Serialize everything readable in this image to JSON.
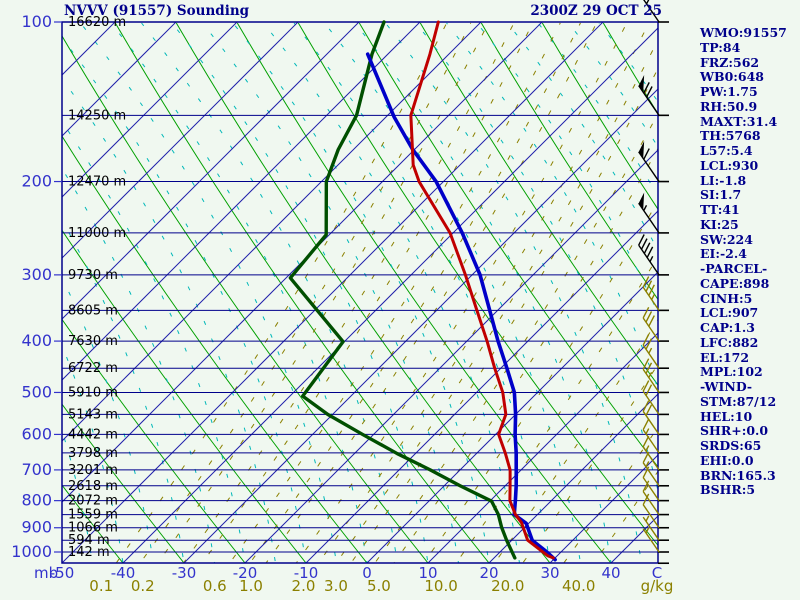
{
  "header": {
    "title": "NVVV (91557) Sounding",
    "datetime": "2300Z 29 OCT 25"
  },
  "stats_panel": {
    "lines": [
      "WMO:91557",
      "TP:84",
      "FRZ:562",
      "WB0:648",
      "PW:1.75",
      "RH:50.9",
      "MAXT:31.4",
      "TH:5768",
      "L57:5.4",
      "LCL:930",
      "LI:-1.8",
      "SI:1.7",
      "TT:41",
      "KI:25",
      "SW:224",
      "EI:-2.4",
      "-PARCEL-",
      "CAPE:898",
      "CINH:5",
      "LCL:907",
      "CAP:1.3",
      "LFC:882",
      "EL:172",
      "MPL:102",
      "-WIND-",
      "STM:87/12",
      "HEL:10",
      "SHR+:0.0",
      "SRDS:65",
      "EHI:0.0",
      "BRN:165.3",
      "BSHR:5"
    ]
  },
  "axes": {
    "pressure_unit": "mb",
    "temp_unit": "C",
    "ratio_unit": "g/kg",
    "pressure_ticks": [
      100,
      200,
      300,
      400,
      500,
      600,
      700,
      800,
      900,
      1000
    ],
    "temp_ticks_c": [
      -50,
      -40,
      -30,
      -20,
      -10,
      0,
      10,
      20,
      30,
      40
    ],
    "height_labels": [
      {
        "p": 100,
        "label": "16620 m"
      },
      {
        "p": 150,
        "label": "14250 m"
      },
      {
        "p": 200,
        "label": "12470 m"
      },
      {
        "p": 250,
        "label": "11000 m"
      },
      {
        "p": 300,
        "label": "9730 m"
      },
      {
        "p": 350,
        "label": "8605 m"
      },
      {
        "p": 400,
        "label": "7630 m"
      },
      {
        "p": 450,
        "label": "6722 m"
      },
      {
        "p": 500,
        "label": "5910 m"
      },
      {
        "p": 550,
        "label": "5143 m"
      },
      {
        "p": 600,
        "label": "4442 m"
      },
      {
        "p": 650,
        "label": "3798 m"
      },
      {
        "p": 700,
        "label": "3201 m"
      },
      {
        "p": 750,
        "label": "2618 m"
      },
      {
        "p": 800,
        "label": "2072 m"
      },
      {
        "p": 850,
        "label": "1559 m"
      },
      {
        "p": 900,
        "label": "1066 m"
      },
      {
        "p": 950,
        "label": "594 m"
      },
      {
        "p": 1000,
        "label": "142 m"
      }
    ],
    "mixing_ratio_labeled": [
      0.1,
      0.2,
      0.6,
      1.0,
      2.0,
      3.0,
      5.0,
      10.0,
      20.0,
      40.0
    ],
    "mixing_ratio_unlabeled": [
      0.15,
      0.3,
      0.4,
      0.8,
      1.5,
      2.5,
      4.0,
      7.0,
      15.0,
      30.0
    ]
  },
  "chart_data": {
    "type": "line",
    "subtype": "skew-t-log-p sounding",
    "title": "NVVV (91557) Sounding",
    "xlabel": "Temperature (C)",
    "ylabel": "Pressure (mb)",
    "pressure_range_mb": [
      100,
      1050
    ],
    "temp_axis_range_c": [
      -50,
      40
    ],
    "grid": "skew-t background: isobars, skewed isotherms, dry adiabats, moist adiabats, mixing-ratio lines",
    "series": [
      {
        "name": "temperature",
        "points": [
          {
            "p": 100,
            "t": -77.0
          },
          {
            "p": 115,
            "t": -73.1
          },
          {
            "p": 150,
            "t": -66.2
          },
          {
            "p": 186,
            "t": -57.7
          },
          {
            "p": 200,
            "t": -54.0
          },
          {
            "p": 250,
            "t": -40.5
          },
          {
            "p": 300,
            "t": -31.1
          },
          {
            "p": 350,
            "t": -23.4
          },
          {
            "p": 400,
            "t": -16.7
          },
          {
            "p": 450,
            "t": -11.0
          },
          {
            "p": 500,
            "t": -5.7
          },
          {
            "p": 550,
            "t": -1.6
          },
          {
            "p": 600,
            "t": 0.5
          },
          {
            "p": 650,
            "t": 4.6
          },
          {
            "p": 700,
            "t": 8.2
          },
          {
            "p": 750,
            "t": 10.8
          },
          {
            "p": 800,
            "t": 13.2
          },
          {
            "p": 850,
            "t": 16.4
          },
          {
            "p": 880,
            "t": 18.7
          },
          {
            "p": 950,
            "t": 22.6
          },
          {
            "p": 1017,
            "t": 28.5
          },
          {
            "p": 1026,
            "t": 29.7
          }
        ]
      },
      {
        "name": "dewpoint",
        "points": [
          {
            "p": 100,
            "t": -85.9
          },
          {
            "p": 115,
            "t": -82.6
          },
          {
            "p": 150,
            "t": -75.1
          },
          {
            "p": 174,
            "t": -72.5
          },
          {
            "p": 200,
            "t": -69.2
          },
          {
            "p": 252,
            "t": -60.5
          },
          {
            "p": 304,
            "t": -59.3
          },
          {
            "p": 401,
            "t": -40.2
          },
          {
            "p": 508,
            "t": -37.9
          },
          {
            "p": 550,
            "t": -30.8
          },
          {
            "p": 600,
            "t": -21.8
          },
          {
            "p": 652,
            "t": -13.0
          },
          {
            "p": 700,
            "t": -4.9
          },
          {
            "p": 750,
            "t": 2.6
          },
          {
            "p": 802,
            "t": 10.3
          },
          {
            "p": 850,
            "t": 13.6
          },
          {
            "p": 898,
            "t": 16.2
          },
          {
            "p": 951,
            "t": 19.2
          },
          {
            "p": 1026,
            "t": 23.4
          }
        ]
      },
      {
        "name": "parcel",
        "points": [
          {
            "p": 115,
            "t": -83.3
          },
          {
            "p": 151,
            "t": -68.7
          },
          {
            "p": 174,
            "t": -60.3
          },
          {
            "p": 200,
            "t": -51.2
          },
          {
            "p": 250,
            "t": -38.5
          },
          {
            "p": 300,
            "t": -28.7
          },
          {
            "p": 350,
            "t": -21.3
          },
          {
            "p": 400,
            "t": -14.9
          },
          {
            "p": 450,
            "t": -9.0
          },
          {
            "p": 500,
            "t": -3.8
          },
          {
            "p": 550,
            "t": 0.0
          },
          {
            "p": 600,
            "t": 3.2
          },
          {
            "p": 650,
            "t": 6.4
          },
          {
            "p": 700,
            "t": 9.2
          },
          {
            "p": 750,
            "t": 11.8
          },
          {
            "p": 800,
            "t": 14.1
          },
          {
            "p": 850,
            "t": 16.2
          },
          {
            "p": 883,
            "t": 19.6
          },
          {
            "p": 951,
            "t": 23.4
          },
          {
            "p": 1000,
            "t": 27.7
          },
          {
            "p": 1034,
            "t": 30.3
          }
        ]
      }
    ],
    "winds": [
      {
        "p": 100,
        "kt": 65
      },
      {
        "p": 150,
        "kt": 70
      },
      {
        "p": 200,
        "kt": 60
      },
      {
        "p": 250,
        "kt": 55
      },
      {
        "p": 300,
        "kt": 45
      },
      {
        "p": 350,
        "kt": 35
      },
      {
        "p": 400,
        "kt": 30
      },
      {
        "p": 450,
        "kt": 25
      },
      {
        "p": 500,
        "kt": 25
      },
      {
        "p": 550,
        "kt": 20
      },
      {
        "p": 600,
        "kt": 20
      },
      {
        "p": 650,
        "kt": 15
      },
      {
        "p": 700,
        "kt": 15
      },
      {
        "p": 750,
        "kt": 15
      },
      {
        "p": 800,
        "kt": 10
      },
      {
        "p": 850,
        "kt": 10
      },
      {
        "p": 900,
        "kt": 10
      },
      {
        "p": 950,
        "kt": 5
      },
      {
        "p": 1000,
        "kt": 5
      }
    ]
  },
  "colors": {
    "background": "#f0f8f0",
    "frame": "#00008b",
    "isobar": "#00008b",
    "isotherm": "#2020aa",
    "dry_adiabat": "#00a000",
    "moist_adiabat": "#00b8b8",
    "mixing_ratio": "#8b8000",
    "temperature_curve": "#c00000",
    "dewpoint_curve": "#004f00",
    "parcel_curve": "#0000c8",
    "axis_label": "#3333cc",
    "height_label": "#000000",
    "wind_upper": "#000000",
    "wind_lower": "#8b8000",
    "text": "#00008b"
  }
}
